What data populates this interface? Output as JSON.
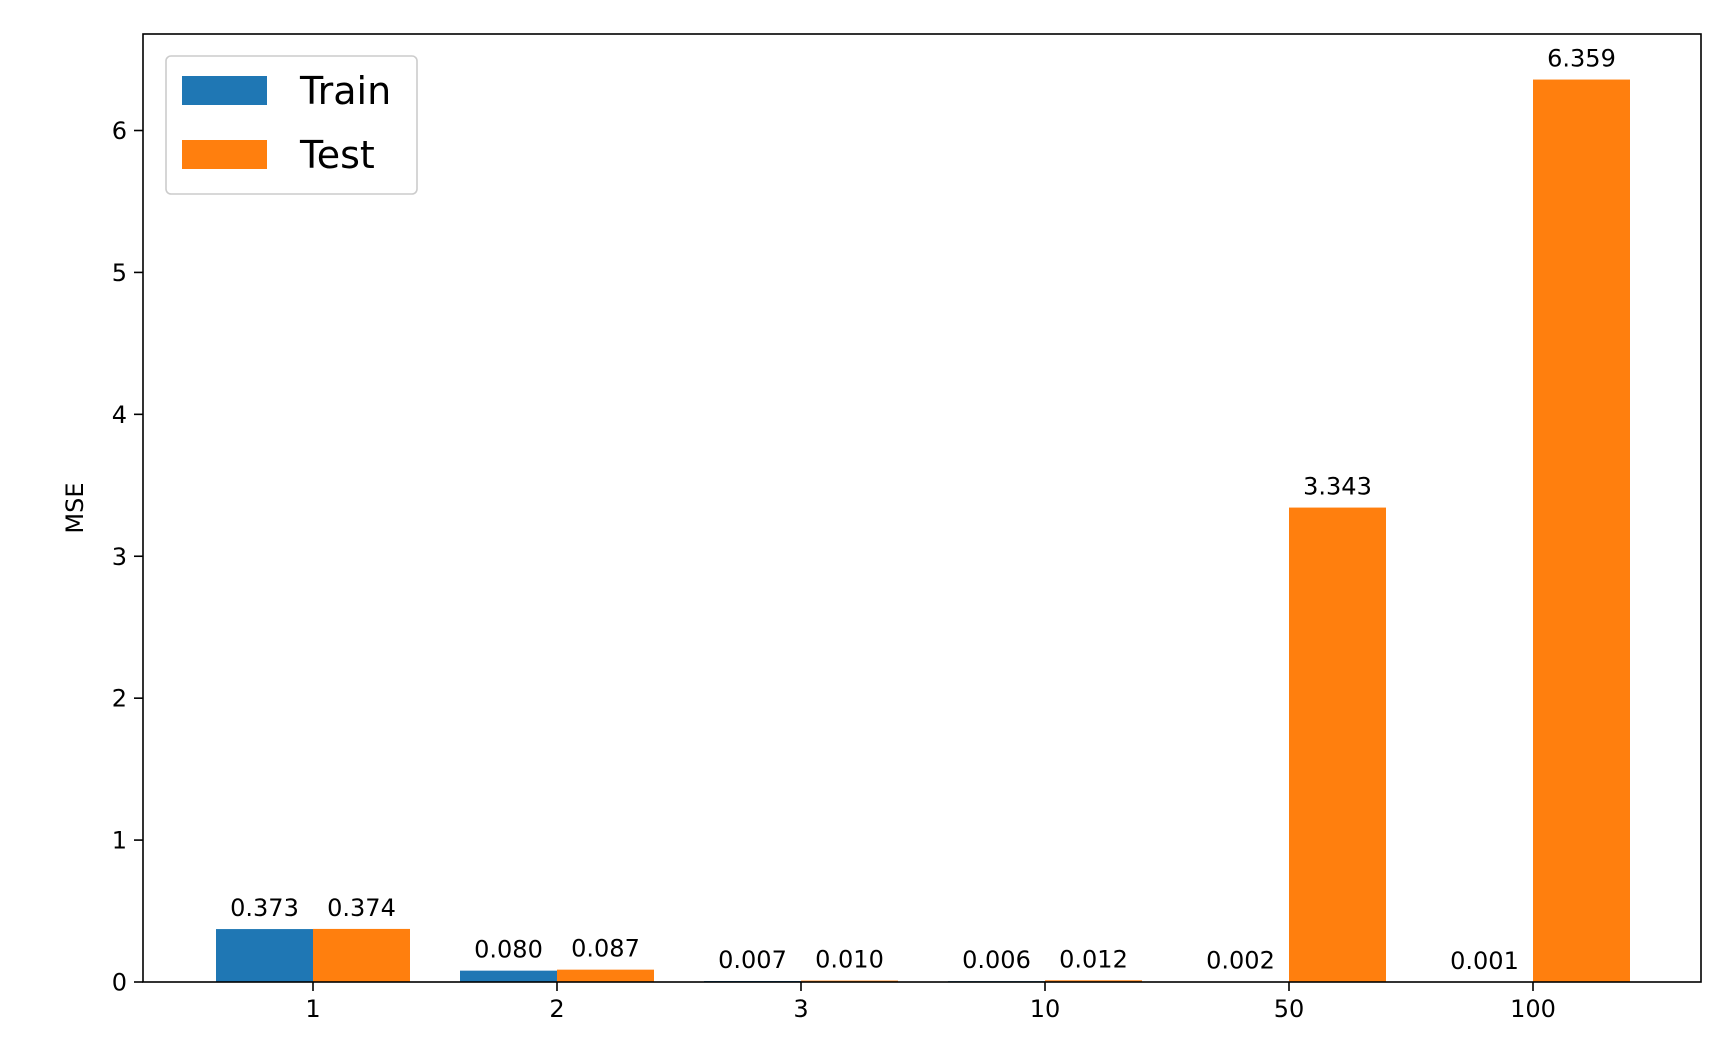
{
  "chart_data": {
    "type": "bar",
    "title": "",
    "xlabel": "",
    "ylabel": "MSE",
    "categories": [
      "1",
      "2",
      "3",
      "10",
      "50",
      "100"
    ],
    "series": [
      {
        "name": "Train",
        "color": "#1f77b4",
        "values": [
          0.373,
          0.08,
          0.007,
          0.006,
          0.002,
          0.001
        ],
        "labels": [
          "0.373",
          "0.080",
          "0.007",
          "0.006",
          "0.002",
          "0.001"
        ]
      },
      {
        "name": "Test",
        "color": "#ff7f0e",
        "values": [
          0.374,
          0.087,
          0.01,
          0.012,
          3.343,
          6.359
        ],
        "labels": [
          "0.374",
          "0.087",
          "0.010",
          "0.012",
          "3.343",
          "6.359"
        ]
      }
    ],
    "ylim": [
      0,
      6.68
    ],
    "yticks": [
      0,
      1,
      2,
      3,
      4,
      5,
      6
    ],
    "grid": false,
    "legend_position": "top-left"
  }
}
